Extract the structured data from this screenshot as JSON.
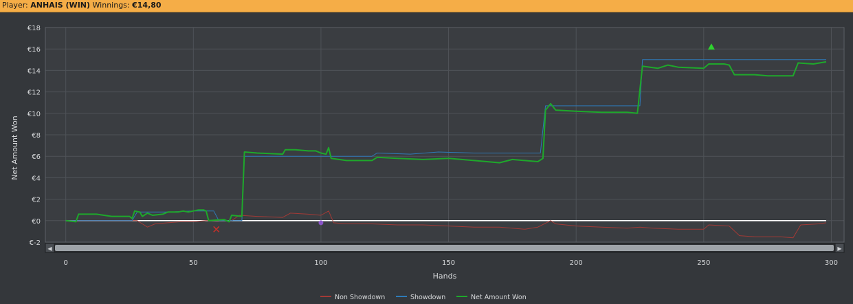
{
  "header": {
    "player_label": "Player:",
    "player_name": "ANHAIS (WIN)",
    "winnings_label": "Winnings:",
    "winnings_value": "€14,80"
  },
  "colors": {
    "net_amount": "#1ea82b",
    "showdown": "#2e7ab8",
    "non_showdown": "#a33a36",
    "zero_line": "#ffffff",
    "header_bg": "#f5ad47",
    "chart_bg": "#34373b"
  },
  "scrollbar": {
    "left_arrow": "◀",
    "right_arrow": "▶"
  },
  "chart_data": {
    "type": "line",
    "xlabel": "Hands",
    "ylabel": "Net Amount Won",
    "xlim": [
      -8,
      305
    ],
    "ylim": [
      -2,
      18
    ],
    "xticks": [
      0,
      50,
      100,
      150,
      200,
      250,
      300
    ],
    "yticks": [
      -2,
      0,
      2,
      4,
      6,
      8,
      10,
      12,
      14,
      16,
      18
    ],
    "ytick_labels": [
      "€-2",
      "€0",
      "€2",
      "€4",
      "€6",
      "€8",
      "€10",
      "€12",
      "€14",
      "€16",
      "€18"
    ],
    "grid": true,
    "legend_position": "bottom",
    "series": [
      {
        "name": "Non Showdown",
        "color": "#a33a36",
        "points": [
          [
            0,
            0
          ],
          [
            25,
            0
          ],
          [
            28,
            0
          ],
          [
            30,
            -0.3
          ],
          [
            32,
            -0.6
          ],
          [
            35,
            -0.3
          ],
          [
            40,
            -0.2
          ],
          [
            45,
            -0.1
          ],
          [
            50,
            -0.1
          ],
          [
            55,
            0
          ],
          [
            60,
            0
          ],
          [
            65,
            0
          ],
          [
            68,
            0.5
          ],
          [
            75,
            0.4
          ],
          [
            85,
            0.3
          ],
          [
            88,
            0.7
          ],
          [
            95,
            0.6
          ],
          [
            100,
            0.5
          ],
          [
            103,
            0.9
          ],
          [
            105,
            -0.2
          ],
          [
            110,
            -0.3
          ],
          [
            120,
            -0.3
          ],
          [
            130,
            -0.4
          ],
          [
            140,
            -0.4
          ],
          [
            150,
            -0.5
          ],
          [
            160,
            -0.6
          ],
          [
            170,
            -0.6
          ],
          [
            180,
            -0.8
          ],
          [
            185,
            -0.6
          ],
          [
            190,
            0.0
          ],
          [
            192,
            -0.3
          ],
          [
            200,
            -0.5
          ],
          [
            210,
            -0.6
          ],
          [
            220,
            -0.7
          ],
          [
            225,
            -0.6
          ],
          [
            230,
            -0.7
          ],
          [
            240,
            -0.8
          ],
          [
            250,
            -0.8
          ],
          [
            252,
            -0.4
          ],
          [
            260,
            -0.5
          ],
          [
            264,
            -1.4
          ],
          [
            270,
            -1.5
          ],
          [
            280,
            -1.5
          ],
          [
            285,
            -1.6
          ],
          [
            288,
            -0.4
          ],
          [
            295,
            -0.3
          ],
          [
            298,
            -0.2
          ]
        ]
      },
      {
        "name": "Showdown",
        "color": "#2e7ab8",
        "points": [
          [
            0,
            0
          ],
          [
            26,
            0
          ],
          [
            28,
            0.8
          ],
          [
            40,
            0.8
          ],
          [
            50,
            0.9
          ],
          [
            58,
            0.9
          ],
          [
            60,
            0
          ],
          [
            69,
            0
          ],
          [
            70,
            6
          ],
          [
            100,
            6
          ],
          [
            120,
            6
          ],
          [
            122,
            6.3
          ],
          [
            135,
            6.2
          ],
          [
            146,
            6.4
          ],
          [
            160,
            6.3
          ],
          [
            186,
            6.3
          ],
          [
            188,
            10.7
          ],
          [
            225,
            10.7
          ],
          [
            226,
            15
          ],
          [
            298,
            15
          ]
        ]
      },
      {
        "name": "Net Amount Won",
        "color": "#1ea82b",
        "points": [
          [
            0,
            0
          ],
          [
            4,
            -0.1
          ],
          [
            5,
            0.6
          ],
          [
            12,
            0.6
          ],
          [
            18,
            0.4
          ],
          [
            25,
            0.4
          ],
          [
            26,
            0.2
          ],
          [
            27,
            0.9
          ],
          [
            29,
            0.8
          ],
          [
            30,
            0.4
          ],
          [
            32,
            0.7
          ],
          [
            34,
            0.5
          ],
          [
            38,
            0.6
          ],
          [
            40,
            0.8
          ],
          [
            44,
            0.8
          ],
          [
            46,
            0.9
          ],
          [
            48,
            0.8
          ],
          [
            52,
            1.0
          ],
          [
            54,
            1.0
          ],
          [
            55,
            0.9
          ],
          [
            56,
            0
          ],
          [
            62,
            0.1
          ],
          [
            64,
            -0.1
          ],
          [
            65,
            0.5
          ],
          [
            69,
            0.4
          ],
          [
            70,
            6.4
          ],
          [
            75,
            6.3
          ],
          [
            85,
            6.2
          ],
          [
            86,
            6.6
          ],
          [
            90,
            6.6
          ],
          [
            95,
            6.5
          ],
          [
            98,
            6.5
          ],
          [
            100,
            6.3
          ],
          [
            102,
            6.2
          ],
          [
            103,
            6.8
          ],
          [
            104,
            5.8
          ],
          [
            110,
            5.6
          ],
          [
            120,
            5.6
          ],
          [
            122,
            5.9
          ],
          [
            130,
            5.8
          ],
          [
            140,
            5.7
          ],
          [
            150,
            5.8
          ],
          [
            160,
            5.6
          ],
          [
            170,
            5.4
          ],
          [
            175,
            5.7
          ],
          [
            185,
            5.5
          ],
          [
            187,
            5.8
          ],
          [
            188,
            10.3
          ],
          [
            190,
            10.9
          ],
          [
            192,
            10.3
          ],
          [
            200,
            10.2
          ],
          [
            210,
            10.1
          ],
          [
            220,
            10.1
          ],
          [
            224,
            10.0
          ],
          [
            226,
            14.4
          ],
          [
            232,
            14.2
          ],
          [
            236,
            14.5
          ],
          [
            240,
            14.3
          ],
          [
            250,
            14.2
          ],
          [
            252,
            14.6
          ],
          [
            258,
            14.6
          ],
          [
            260,
            14.5
          ],
          [
            262,
            13.6
          ],
          [
            270,
            13.6
          ],
          [
            275,
            13.5
          ],
          [
            285,
            13.5
          ],
          [
            287,
            14.7
          ],
          [
            293,
            14.6
          ],
          [
            298,
            14.8
          ]
        ]
      }
    ],
    "markers": [
      {
        "shape": "x",
        "x": 59,
        "y": -0.8,
        "color": "#c0302a"
      },
      {
        "shape": "circle",
        "x": 100,
        "y": -0.2,
        "color": "#8a55c8"
      },
      {
        "shape": "triangle",
        "x": 253,
        "y": 16.2,
        "color": "#2fd22f"
      }
    ]
  }
}
